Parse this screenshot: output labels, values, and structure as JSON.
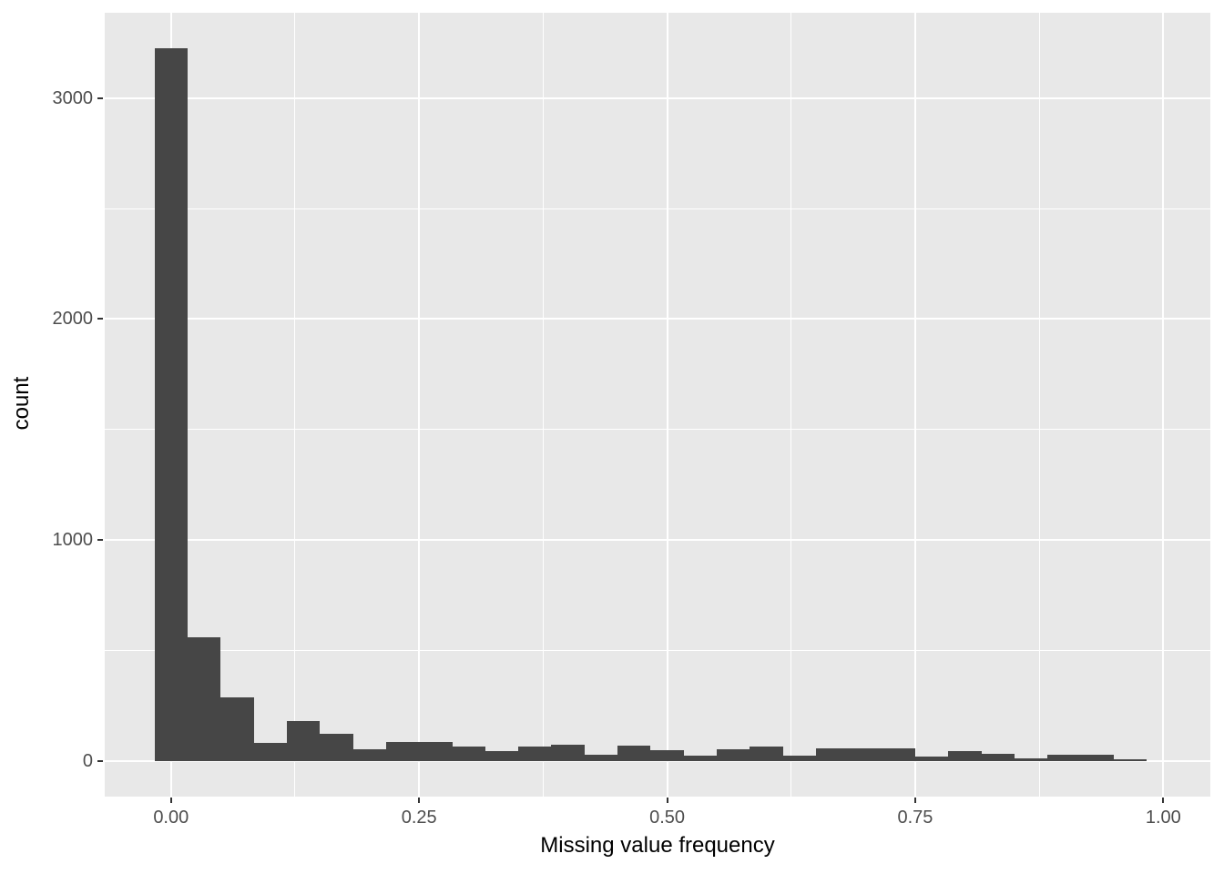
{
  "chart_data": {
    "type": "bar",
    "subtype": "histogram",
    "title": "",
    "xlabel": "Missing value frequency",
    "ylabel": "count",
    "x": [
      0.0,
      0.0333,
      0.0667,
      0.1,
      0.1333,
      0.1667,
      0.2,
      0.2333,
      0.2667,
      0.3,
      0.3333,
      0.3667,
      0.4,
      0.4333,
      0.4667,
      0.5,
      0.5333,
      0.5667,
      0.6,
      0.6333,
      0.6667,
      0.7,
      0.7333,
      0.7667,
      0.8,
      0.8333,
      0.8667,
      0.9,
      0.9333,
      0.9667
    ],
    "counts": [
      3225,
      560,
      290,
      83,
      182,
      123,
      55,
      85,
      85,
      65,
      44,
      66,
      75,
      28,
      70,
      51,
      26,
      53,
      64,
      23,
      56,
      56,
      56,
      19,
      47,
      33,
      10,
      28,
      28,
      7
    ],
    "bin_width": 0.033333,
    "x_tick_values": [
      0.0,
      0.25,
      0.5,
      0.75,
      1.0
    ],
    "x_tick_labels": [
      "0.00",
      "0.25",
      "0.50",
      "0.75",
      "1.00"
    ],
    "x_minor_gridlines": [
      0.125,
      0.375,
      0.625,
      0.875
    ],
    "y_tick_values": [
      0,
      1000,
      2000,
      3000
    ],
    "y_tick_labels": [
      "0",
      "1000",
      "2000",
      "3000"
    ],
    "y_minor_gridlines": [
      500,
      1500,
      2500
    ],
    "xlim": [
      -0.0668,
      1.0474
    ],
    "ylim": [
      -161,
      3386
    ],
    "grid": "on",
    "legend": "none",
    "colors": {
      "panel_background": "#E8E8E8",
      "bar_fill": "#464646",
      "gridline": "#FFFFFF",
      "axis_text": "#4D4D4D",
      "axis_title": "#000000",
      "tick_mark": "#333333",
      "figure_background": "#FFFFFF"
    }
  }
}
